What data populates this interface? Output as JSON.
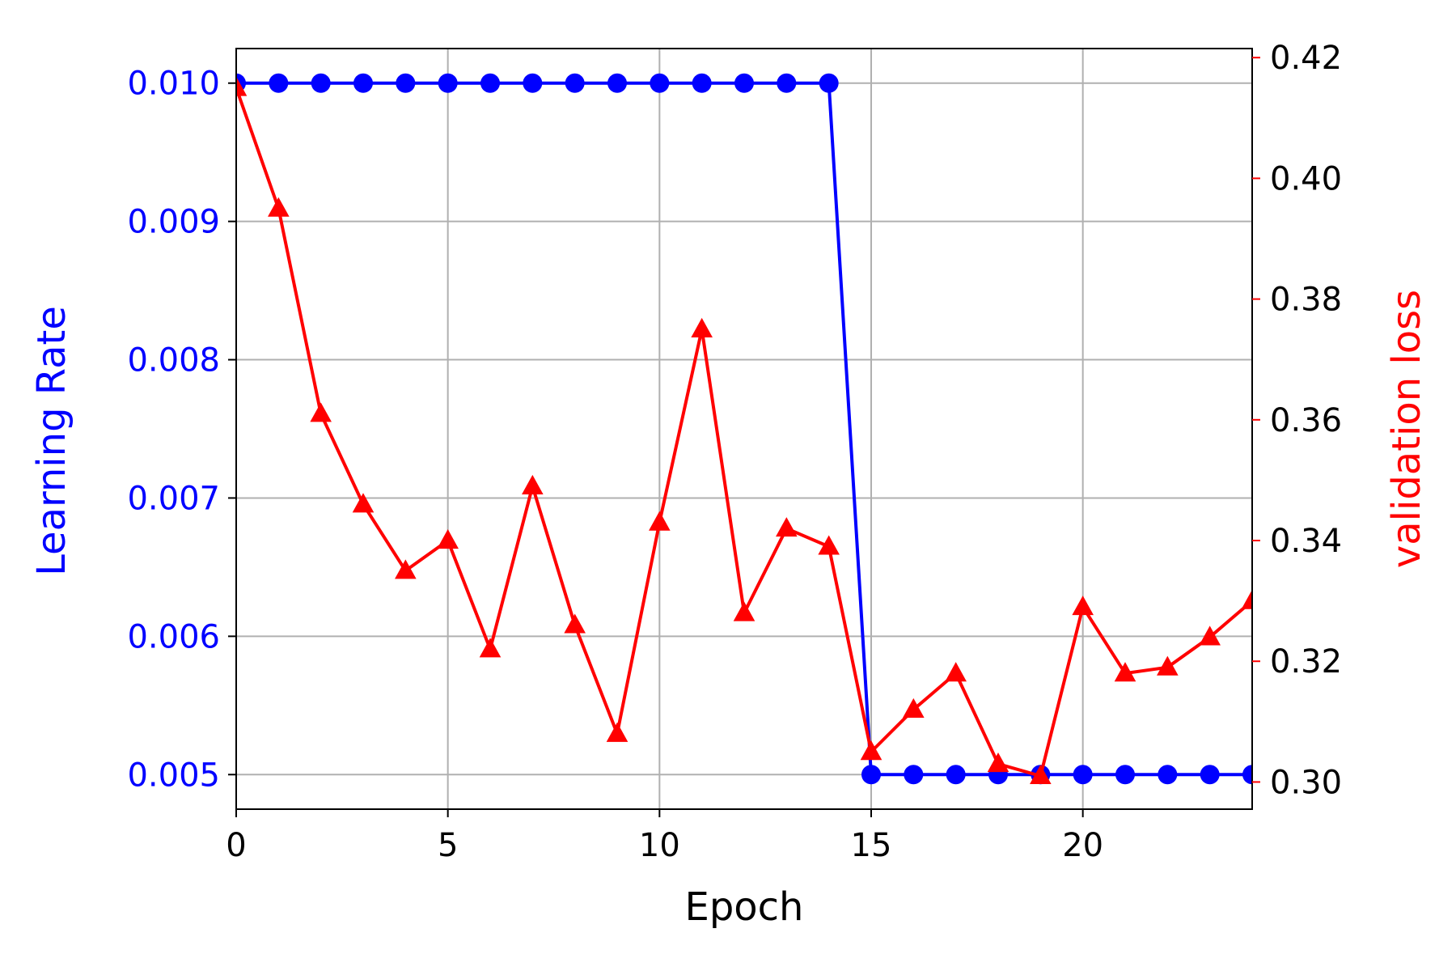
{
  "chart_data": {
    "type": "line",
    "xlabel": "Epoch",
    "ylabel_left": "Learning Rate",
    "ylabel_right": "validation loss",
    "xlim": [
      0,
      24
    ],
    "ylim_left": [
      0.00475,
      0.01025
    ],
    "ylim_right": [
      0.2955,
      0.4215
    ],
    "grid": true,
    "x_ticks": [
      {
        "value": 0,
        "label": "0"
      },
      {
        "value": 5,
        "label": "5"
      },
      {
        "value": 10,
        "label": "10"
      },
      {
        "value": 15,
        "label": "15"
      },
      {
        "value": 20,
        "label": "20"
      }
    ],
    "left_ticks": [
      {
        "value": 0.005,
        "label": "0.005"
      },
      {
        "value": 0.006,
        "label": "0.006"
      },
      {
        "value": 0.007,
        "label": "0.007"
      },
      {
        "value": 0.008,
        "label": "0.008"
      },
      {
        "value": 0.009,
        "label": "0.009"
      },
      {
        "value": 0.01,
        "label": "0.010"
      }
    ],
    "right_ticks": [
      {
        "value": 0.3,
        "label": "0.30"
      },
      {
        "value": 0.32,
        "label": "0.32"
      },
      {
        "value": 0.34,
        "label": "0.34"
      },
      {
        "value": 0.36,
        "label": "0.36"
      },
      {
        "value": 0.38,
        "label": "0.38"
      },
      {
        "value": 0.4,
        "label": "0.40"
      },
      {
        "value": 0.42,
        "label": "0.42"
      }
    ],
    "x": [
      0,
      1,
      2,
      3,
      4,
      5,
      6,
      7,
      8,
      9,
      10,
      11,
      12,
      13,
      14,
      15,
      16,
      17,
      18,
      19,
      20,
      21,
      22,
      23,
      24
    ],
    "series": [
      {
        "axis": "left",
        "color": "#0000ff",
        "marker": "circle",
        "values": [
          0.01,
          0.01,
          0.01,
          0.01,
          0.01,
          0.01,
          0.01,
          0.01,
          0.01,
          0.01,
          0.01,
          0.01,
          0.01,
          0.01,
          0.01,
          0.005,
          0.005,
          0.005,
          0.005,
          0.005,
          0.005,
          0.005,
          0.005,
          0.005,
          0.005
        ]
      },
      {
        "axis": "right",
        "color": "#ff0000",
        "marker": "triangle",
        "values": [
          0.415,
          0.395,
          0.361,
          0.346,
          0.335,
          0.34,
          0.322,
          0.349,
          0.326,
          0.308,
          0.343,
          0.375,
          0.328,
          0.342,
          0.339,
          0.305,
          0.312,
          0.318,
          0.303,
          0.301,
          0.329,
          0.318,
          0.319,
          0.324,
          0.33
        ]
      }
    ],
    "colors": {
      "left_axis": "#0000ff",
      "right_label": "#ff0000",
      "right_ticks": "#ff0000",
      "grid": "#b0b0b0"
    }
  }
}
